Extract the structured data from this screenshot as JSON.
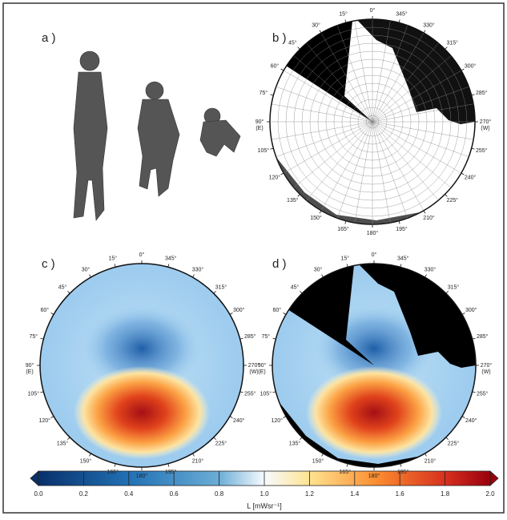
{
  "panels": [
    {
      "label": "a )"
    },
    {
      "label": "b )"
    },
    {
      "label": "c )"
    },
    {
      "label": "d )"
    }
  ],
  "azimuth_labels": [
    "0°",
    "15°",
    "30°",
    "45°",
    "60°",
    "75°",
    "90°",
    "105°",
    "120°",
    "135°",
    "150°",
    "165°",
    "180°",
    "195°",
    "210°",
    "225°",
    "240°",
    "255°",
    "270°",
    "285°",
    "300°",
    "315°",
    "330°",
    "345°"
  ],
  "east_label": "(E)",
  "west_label": "(W)",
  "colorbar": {
    "ticks": [
      {
        "value": 0,
        "label": "0.0"
      },
      0.2,
      0.4,
      0.6,
      0.8,
      {
        "value": 1,
        "label": "1.0"
      },
      1.2,
      1.4,
      1.6,
      1.8,
      {
        "value": 2,
        "label": "2.0"
      }
    ],
    "label": "L [mWsr⁻¹]"
  }
}
